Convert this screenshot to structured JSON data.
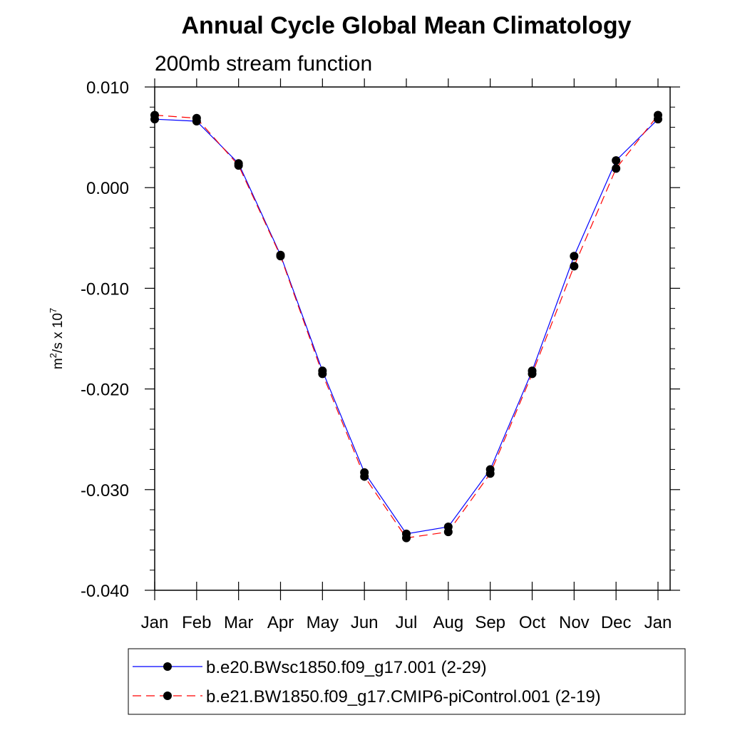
{
  "chart_data": {
    "type": "line",
    "title": "Annual Cycle Global Mean Climatology",
    "subtitle": "200mb stream function",
    "ylabel": {
      "base": "m",
      "sup1": "2",
      "mid": "/s x 10",
      "sup2": "7"
    },
    "xlabel": "",
    "ylim": [
      -0.04,
      0.01
    ],
    "yticks": [
      0.01,
      0.0,
      -0.01,
      -0.02,
      -0.03,
      -0.04
    ],
    "ytick_labels": [
      "0.010",
      "0.000",
      "-0.010",
      "-0.020",
      "-0.030",
      "-0.040"
    ],
    "categories": [
      "Jan",
      "Feb",
      "Mar",
      "Apr",
      "May",
      "Jun",
      "Jul",
      "Aug",
      "Sep",
      "Oct",
      "Nov",
      "Dec",
      "Jan"
    ],
    "grid": false,
    "legend_position": "bottom",
    "series": [
      {
        "name": "b.e20.BWsc1850.f09_g17.001 (2-29)",
        "color": "#0000ff",
        "dash": "solid",
        "marker": "filled-circle",
        "values": [
          0.0068,
          0.0066,
          0.0024,
          -0.0067,
          -0.0182,
          -0.0283,
          -0.0344,
          -0.0337,
          -0.028,
          -0.0182,
          -0.0068,
          0.0027,
          0.0068
        ]
      },
      {
        "name": "b.e21.BW1850.f09_g17.CMIP6-piControl.001 (2-19)",
        "color": "#ff0000",
        "dash": "dashed",
        "marker": "filled-circle",
        "values": [
          0.0072,
          0.0069,
          0.0022,
          -0.0068,
          -0.0185,
          -0.0287,
          -0.0348,
          -0.0342,
          -0.0284,
          -0.0185,
          -0.0078,
          0.0019,
          0.0072
        ]
      }
    ]
  }
}
